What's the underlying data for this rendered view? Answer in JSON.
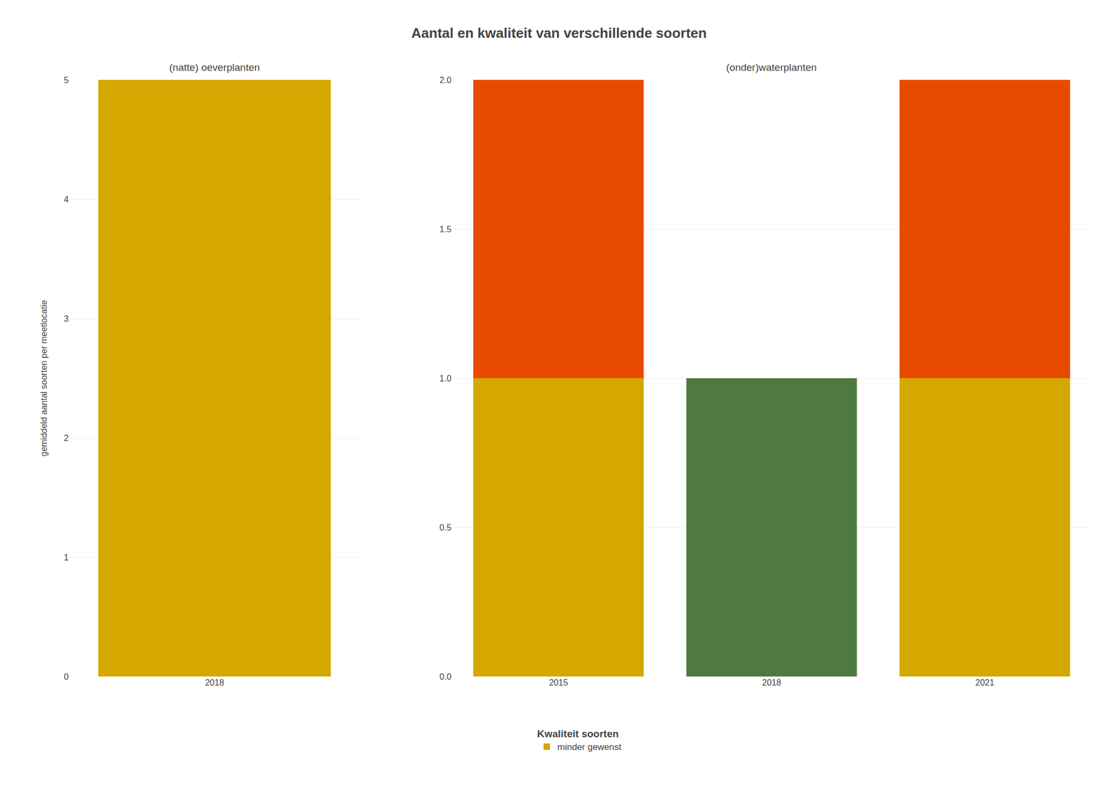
{
  "title": "Aantal en kwaliteit van verschillende soorten",
  "ylabel": "gemiddeld aantal soorten per meetlocatie",
  "legend_title": "Kwaliteit soorten",
  "legend": "bottom",
  "chart_data": [
    {
      "type": "bar",
      "subtitle": "(natte) oeverplanten",
      "categories": [
        "2018"
      ],
      "series": [
        {
          "name": "minder gewenst",
          "color": "#D4A800",
          "values": [
            5.0
          ]
        }
      ],
      "ylim": [
        0,
        5
      ],
      "yticks": [
        0,
        1,
        2,
        3,
        4,
        5
      ],
      "grid": true
    },
    {
      "type": "bar",
      "subtitle": "(onder)waterplanten",
      "categories": [
        "2015",
        "2018",
        "2021"
      ],
      "stacked": true,
      "series": [
        {
          "name": "minder gewenst",
          "color": "#D4A800",
          "values": [
            1.0,
            0.0,
            1.0
          ]
        },
        {
          "color": "#E84B00",
          "values": [
            1.0,
            0.0,
            1.0
          ]
        },
        {
          "color": "#4F7942",
          "values": [
            0.0,
            1.0,
            0.0
          ]
        }
      ],
      "ylim": [
        0,
        2.0
      ],
      "yticks": [
        {
          "value": 0.0,
          "label": "0.0"
        },
        0.5,
        {
          "value": 1.0,
          "label": "1.0"
        },
        1.5,
        {
          "value": 2.0,
          "label": "2.0"
        }
      ],
      "grid": true
    }
  ]
}
